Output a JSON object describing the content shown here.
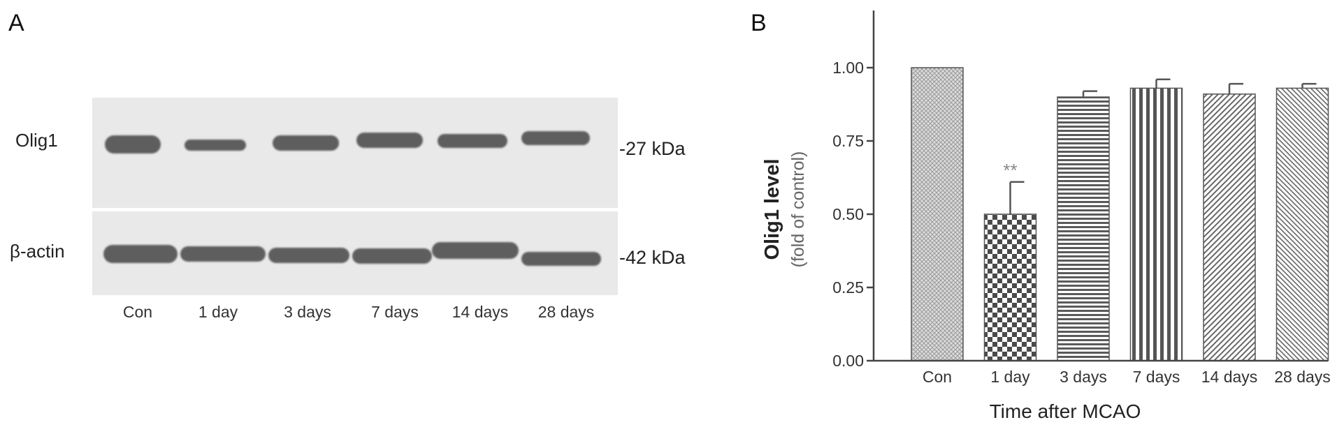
{
  "panel_labels": {
    "a": "A",
    "b": "B"
  },
  "blot": {
    "rows": [
      {
        "label": "Olig1",
        "size": "-27 kDa"
      },
      {
        "label": "β-actin",
        "size": "-42 kDa"
      }
    ],
    "lanes": [
      "Con",
      "1 day",
      "3 days",
      "7 days",
      "14 days",
      "28 days"
    ]
  },
  "chart_data": {
    "type": "bar",
    "categories": [
      "Con",
      "1 day",
      "3 days",
      "7 days",
      "14 days",
      "28 days"
    ],
    "values": [
      1.0,
      0.5,
      0.9,
      0.93,
      0.91,
      0.93
    ],
    "errors": [
      0.0,
      0.11,
      0.02,
      0.03,
      0.035,
      0.015
    ],
    "annotations": [
      {
        "category": "1 day",
        "text": "**"
      }
    ],
    "title": "",
    "xlabel": "Time after MCAO",
    "ylabel": "Olig1 level",
    "ylabel_sub": "(fold of control)",
    "ylim": [
      0,
      1.2
    ],
    "yticks": [
      "0.00",
      "0.25",
      "0.50",
      "0.75",
      "1.00"
    ],
    "grid": false,
    "colors": {
      "bar_pattern": "#555555",
      "axis": "#444444",
      "annotation": "#888888"
    }
  }
}
